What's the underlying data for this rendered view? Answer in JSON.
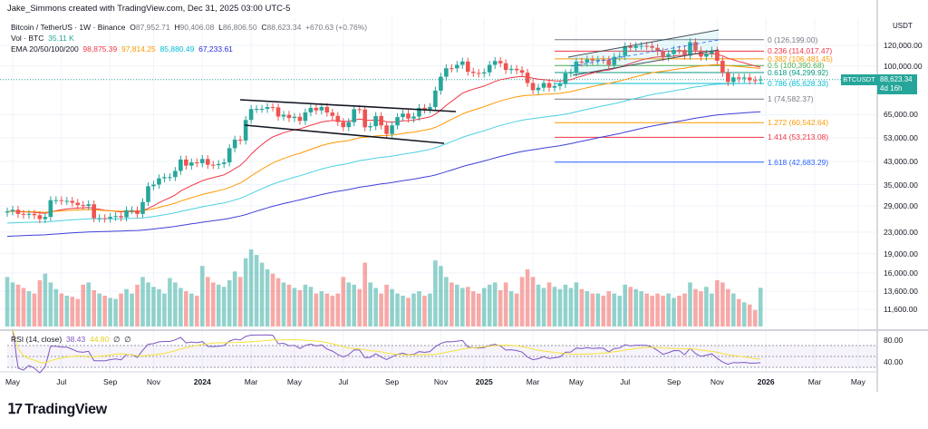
{
  "header": {
    "credit": "Jake_Simmons created with TradingView.com, Dec 31, 2025 03:00 UTC-5"
  },
  "legend": {
    "symbol": "Bitcoin / TetherUS · 1W · Binance",
    "o_label": "O",
    "o": "87,952.71",
    "h_label": "H",
    "h": "90,406.08",
    "l_label": "L",
    "l": "86,806.50",
    "c_label": "C",
    "c": "88,623.34",
    "change": "+670.63 (+0.76%)",
    "vol_label": "Vol · BTC",
    "vol": "35.11 K",
    "ema_label": "EMA 20/50/100/200",
    "ema": [
      "98,875.39",
      "97,814.25",
      "85,880.49",
      "67,233.61"
    ],
    "rsi_label": "RSI (14, close)",
    "rsi": "38.43",
    "rsi_ma": "44.80",
    "rsi_extra": [
      "∅",
      "∅"
    ]
  },
  "price_axis": {
    "unit": "USDT",
    "ticks": [
      "120,000.00",
      "100,000.00",
      "65,000.00",
      "53,000.00",
      "43,000.00",
      "35,000.00",
      "29,000.00",
      "23,000.00",
      "19,000.00",
      "16,000.00",
      "13,600.00",
      "11,600.00"
    ],
    "tick_values": [
      120000,
      100000,
      65000,
      53000,
      43000,
      35000,
      29000,
      23000,
      19000,
      16000,
      13600,
      11600
    ],
    "last_symbol": "BTCUSDT",
    "last_price": "88,623.34",
    "countdown": "4d 16h"
  },
  "rsi_axis": {
    "ticks": [
      "80.00",
      "40.00"
    ],
    "tick_values": [
      80,
      40
    ],
    "levels": [
      70,
      50,
      30
    ]
  },
  "time_axis": {
    "ticks": [
      "May",
      "Jul",
      "Sep",
      "Nov",
      "2024",
      "Mar",
      "May",
      "Jul",
      "Sep",
      "Nov",
      "2025",
      "Mar",
      "May",
      "Jul",
      "Sep",
      "Nov",
      "2026",
      "Mar",
      "May"
    ],
    "tick_weeks": [
      1,
      10,
      19,
      27,
      36,
      45,
      53,
      62,
      71,
      80,
      88,
      97,
      105,
      114,
      123,
      131,
      140,
      149,
      157
    ]
  },
  "fibonacci": [
    {
      "label": "0 (126,199.00)",
      "value": 126199.0,
      "color": "#787b86"
    },
    {
      "label": "0.236 (114,017.47)",
      "value": 114017.47,
      "color": "#f23645"
    },
    {
      "label": "0.382 (106,481.45)",
      "value": 106481.45,
      "color": "#ff9800"
    },
    {
      "label": "0.5 (100,390.68)",
      "value": 100390.68,
      "color": "#4caf50"
    },
    {
      "label": "0.618 (94,299.92)",
      "value": 94299.92,
      "color": "#089981"
    },
    {
      "label": "0.786 (85,628.33)",
      "value": 85628.33,
      "color": "#00bcd4"
    },
    {
      "label": "1 (74,582.37)",
      "value": 74582.37,
      "color": "#787b86"
    },
    {
      "label": "1.272 (60,542.64)",
      "value": 60542.64,
      "color": "#ff9800"
    },
    {
      "label": "1.414 (53,213.08)",
      "value": 53213.08,
      "color": "#f23645"
    },
    {
      "label": "1.618 (42,683.29)",
      "value": 42683.29,
      "color": "#2962ff"
    }
  ],
  "colors": {
    "up": "#26a69a",
    "down": "#ef5350",
    "ema20": "#f23645",
    "ema50": "#ff9800",
    "ema100": "#4dd0e1",
    "ema200": "#3f3fd8",
    "rsi": "#7e57c2",
    "rsi_ma": "#f5e33a"
  },
  "branding": {
    "logo": "TradingView"
  },
  "chart_data": {
    "type": "candlestick",
    "symbol": "BTCUSDT",
    "interval": "1W",
    "y_scale": "log",
    "x_range": [
      "2023-04",
      "2026-05"
    ],
    "y_range": [
      11000,
      135000
    ],
    "grid": true,
    "close": [
      27600,
      28000,
      27000,
      26800,
      27000,
      26700,
      25800,
      26300,
      30500,
      30500,
      30300,
      30300,
      29800,
      29200,
      29000,
      29400,
      26000,
      26000,
      25900,
      26300,
      26500,
      26200,
      27900,
      27900,
      27000,
      30000,
      34500,
      35000,
      37000,
      37400,
      37400,
      39500,
      43700,
      41400,
      42600,
      42300,
      43900,
      41700,
      41600,
      42000,
      42600,
      48300,
      52100,
      51700,
      62000,
      68300,
      68400,
      68400,
      69500,
      69300,
      63900,
      64900,
      63100,
      63800,
      61500,
      66300,
      69000,
      67500,
      69600,
      66200,
      64300,
      60900,
      58200,
      60800,
      68200,
      68000,
      58100,
      58700,
      64200,
      59100,
      54800,
      59100,
      63600,
      65600,
      62800,
      63900,
      69000,
      68000,
      69500,
      80400,
      90900,
      98000,
      97900,
      101000,
      104000,
      95000,
      94000,
      93500,
      94500,
      101000,
      104500,
      102400,
      96500,
      97500,
      96300,
      94200,
      86000,
      80700,
      82500,
      86000,
      82500,
      83700,
      85200,
      93700,
      94300,
      104000,
      103000,
      106000,
      104600,
      105700,
      105600,
      100900,
      108400,
      109200,
      119000,
      117300,
      119400,
      119500,
      119300,
      117400,
      113500,
      108200,
      111100,
      115300,
      115200,
      109600,
      123500,
      114700,
      108600,
      111500,
      114600,
      104700,
      94200,
      86800,
      90400,
      89400,
      90300,
      88100,
      87950,
      88623.34
    ],
    "volume_k_btc": [
      45,
      40,
      38,
      35,
      32,
      30,
      42,
      48,
      40,
      34,
      30,
      28,
      27,
      25,
      38,
      40,
      33,
      30,
      28,
      26,
      25,
      30,
      34,
      30,
      38,
      45,
      40,
      36,
      34,
      30,
      44,
      40,
      35,
      32,
      30,
      28,
      55,
      45,
      40,
      38,
      36,
      42,
      50,
      45,
      62,
      70,
      65,
      58,
      52,
      48,
      44,
      40,
      38,
      35,
      33,
      38,
      36,
      30,
      32,
      30,
      28,
      30,
      45,
      40,
      38,
      34,
      58,
      40,
      35,
      30,
      38,
      34,
      30,
      28,
      26,
      30,
      32,
      28,
      30,
      60,
      55,
      45,
      40,
      38,
      35,
      36,
      32,
      30,
      35,
      38,
      40,
      33,
      40,
      32,
      30,
      45,
      52,
      45,
      38,
      35,
      40,
      36,
      34,
      38,
      35,
      40,
      34,
      32,
      30,
      30,
      28,
      32,
      30,
      28,
      38,
      36,
      34,
      32,
      30,
      28,
      30,
      28,
      30,
      26,
      28,
      30,
      40,
      34,
      32,
      36,
      30,
      42,
      40,
      34,
      30,
      25,
      22,
      20,
      15,
      35.11
    ],
    "trendlines": [
      {
        "name": "descending-channel-upper",
        "from": [
          "2024-03",
          72000
        ],
        "to": [
          "2024-11",
          65000
        ]
      },
      {
        "name": "descending-channel-lower",
        "from": [
          "2024-03",
          57500
        ],
        "to": [
          "2024-11",
          49000
        ]
      },
      {
        "name": "ascending-channel-upper",
        "from": [
          "2025-05",
          105000
        ],
        "to": [
          "2025-10",
          134000
        ]
      },
      {
        "name": "ascending-channel-lower",
        "from": [
          "2025-05",
          90000
        ],
        "to": [
          "2025-10",
          115000
        ]
      }
    ]
  }
}
